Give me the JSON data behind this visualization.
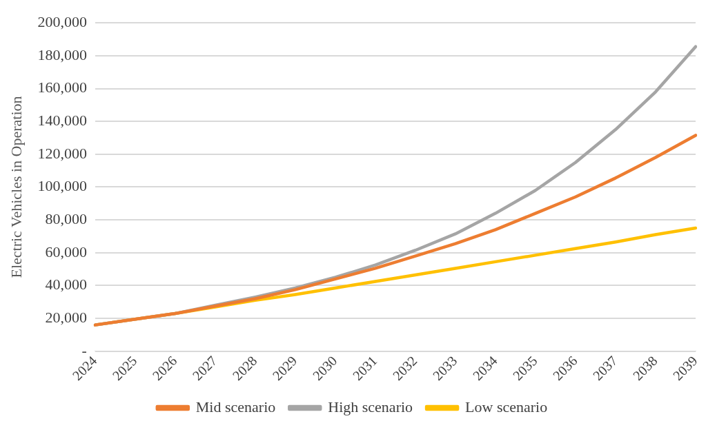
{
  "chart_data": {
    "type": "line",
    "ylabel": "Electric Vehicles in Operation",
    "categories": [
      "2024",
      "2025",
      "2026",
      "2027",
      "2028",
      "2029",
      "2030",
      "2031",
      "2032",
      "2033",
      "2034",
      "2035",
      "2036",
      "2037",
      "2038",
      "2039"
    ],
    "series": [
      {
        "name": "Mid scenario",
        "color": "#ed7d31",
        "values": [
          16000,
          19500,
          23000,
          27500,
          32000,
          37500,
          44000,
          50500,
          58000,
          65500,
          74000,
          84000,
          94000,
          105500,
          118000,
          131500
        ]
      },
      {
        "name": "High scenario",
        "color": "#a5a5a5",
        "values": [
          16000,
          19500,
          23000,
          28000,
          33000,
          38500,
          45000,
          52500,
          61500,
          71500,
          84000,
          98000,
          115000,
          135000,
          158000,
          185500
        ]
      },
      {
        "name": "Low scenario",
        "color": "#ffc000",
        "values": [
          16000,
          19500,
          23000,
          27000,
          31000,
          34500,
          38500,
          42500,
          46500,
          50500,
          54500,
          58500,
          62500,
          66500,
          71000,
          75000
        ]
      }
    ],
    "ylim": [
      0,
      200000
    ],
    "yticks": [
      {
        "value": 0,
        "label": "-"
      },
      {
        "value": 20000,
        "label": "20,000"
      },
      {
        "value": 40000,
        "label": "40,000"
      },
      {
        "value": 60000,
        "label": "60,000"
      },
      {
        "value": 80000,
        "label": "80,000"
      },
      {
        "value": 100000,
        "label": "100,000"
      },
      {
        "value": 120000,
        "label": "120,000"
      },
      {
        "value": 140000,
        "label": "140,000"
      },
      {
        "value": 160000,
        "label": "160,000"
      },
      {
        "value": 180000,
        "label": "180,000"
      },
      {
        "value": 200000,
        "label": "200,000"
      }
    ],
    "grid": "y",
    "legend": "bottom",
    "marker": "none",
    "line_style": "solid"
  }
}
